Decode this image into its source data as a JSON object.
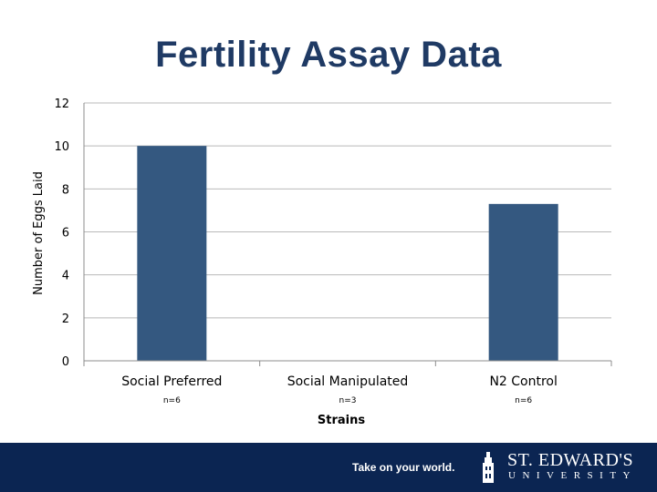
{
  "slide": {
    "title": "Fertility Assay Data"
  },
  "chart_data": {
    "type": "bar",
    "categories": [
      "Social Preferred",
      "Social Manipulated",
      "N2 Control"
    ],
    "sample_sizes": [
      "n=6",
      "n=3",
      "n=6"
    ],
    "values": [
      10,
      0,
      7.3
    ],
    "xlabel": "Strains",
    "ylabel": "Number of Eggs Laid",
    "ylim": [
      0,
      12
    ],
    "yticks": [
      0,
      2,
      4,
      6,
      8,
      10,
      12
    ],
    "grid": true,
    "legend": "none",
    "bar_color": "#345880",
    "grid_color": "#b9b9b9"
  },
  "footer": {
    "tagline": "Take on your world.",
    "logo_name": "ST. EDWARD'S",
    "logo_sub": "UNIVERSITY",
    "background": "#0b2552"
  }
}
